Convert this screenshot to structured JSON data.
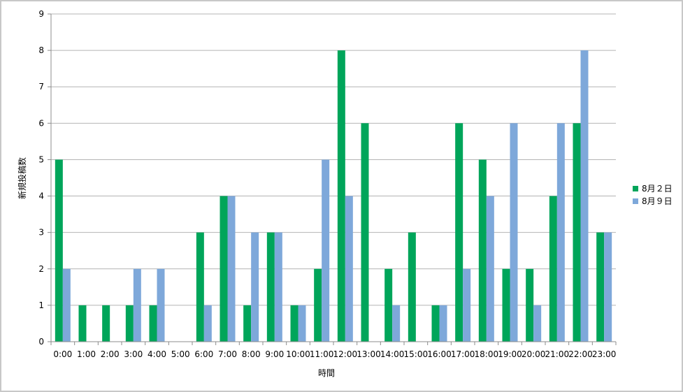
{
  "chart_data": {
    "type": "bar",
    "title": "",
    "xlabel": "時間",
    "ylabel": "新規投稿数",
    "ylim": [
      0,
      9
    ],
    "yticks": [
      0,
      1,
      2,
      3,
      4,
      5,
      6,
      7,
      8,
      9
    ],
    "grid": true,
    "legend_position": "right",
    "categories": [
      "0:00",
      "1:00",
      "2:00",
      "3:00",
      "4:00",
      "5:00",
      "6:00",
      "7:00",
      "8:00",
      "9:00",
      "10:00",
      "11:00",
      "12:00",
      "13:00",
      "14:00",
      "15:00",
      "16:00",
      "17:00",
      "18:00",
      "19:00",
      "20:00",
      "21:00",
      "22:00",
      "23:00"
    ],
    "series": [
      {
        "name": "8月２日",
        "color": "#00a55a",
        "values": [
          5,
          1,
          1,
          1,
          1,
          0,
          3,
          4,
          1,
          3,
          1,
          2,
          8,
          6,
          2,
          3,
          1,
          6,
          5,
          2,
          2,
          4,
          6,
          3
        ]
      },
      {
        "name": "8月９日",
        "color": "#7ea8da",
        "values": [
          2,
          0,
          0,
          2,
          2,
          0,
          1,
          4,
          3,
          3,
          1,
          5,
          4,
          0,
          1,
          0,
          1,
          2,
          4,
          6,
          1,
          6,
          8,
          3
        ]
      }
    ]
  }
}
